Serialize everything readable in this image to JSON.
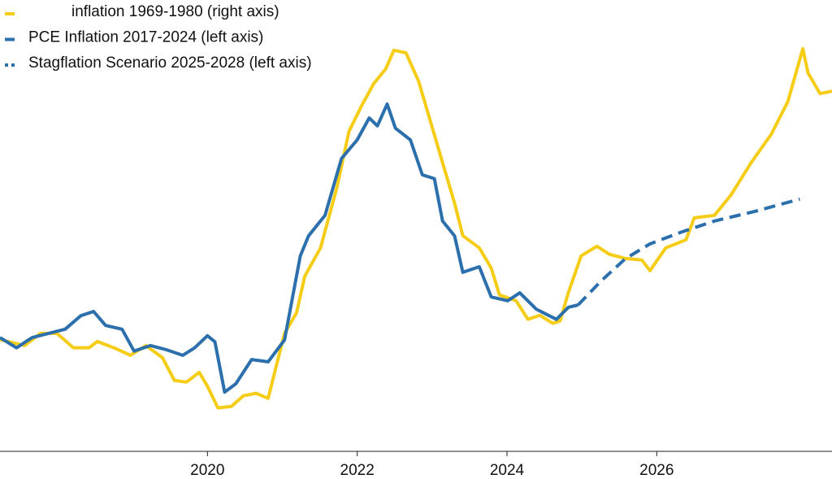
{
  "chart_data": {
    "type": "line",
    "xlim": [
      2017.23,
      2028.34
    ],
    "xticks": [
      2020,
      2022,
      2024,
      2026
    ],
    "ylim": [
      -0.47,
      9.21
    ],
    "y2lim": [
      1.7,
      16.16
    ],
    "series": [
      {
        "name": "inflation 1969-1980 (right axis)",
        "color": "#f5cc16",
        "axis": "y2",
        "dash": false,
        "x": [
          2017.23,
          2017.56,
          2017.77,
          2017.99,
          2018.21,
          2018.42,
          2018.53,
          2018.75,
          2018.97,
          2019.18,
          2019.4,
          2019.56,
          2019.72,
          2019.89,
          2020.0,
          2020.14,
          2020.32,
          2020.48,
          2020.65,
          2020.81,
          2021.03,
          2021.19,
          2021.3,
          2021.51,
          2021.73,
          2021.89,
          2022.06,
          2022.22,
          2022.38,
          2022.49,
          2022.65,
          2022.82,
          2022.98,
          2023.14,
          2023.3,
          2023.41,
          2023.63,
          2023.79,
          2023.9,
          2024.12,
          2024.28,
          2024.44,
          2024.61,
          2024.71,
          2024.82,
          2024.99,
          2025.2,
          2025.37,
          2025.58,
          2025.8,
          2025.91,
          2026.12,
          2026.39,
          2026.5,
          2026.77,
          2026.99,
          2027.26,
          2027.53,
          2027.75,
          2027.95,
          2028.02,
          2028.18,
          2028.34
        ],
        "values": [
          5.28,
          5.09,
          5.48,
          5.48,
          5.02,
          5.02,
          5.22,
          5.02,
          4.78,
          5.09,
          4.7,
          3.97,
          3.92,
          4.23,
          3.79,
          3.09,
          3.14,
          3.48,
          3.56,
          3.4,
          5.48,
          6.14,
          7.31,
          8.22,
          10.17,
          11.95,
          12.78,
          13.48,
          13.95,
          14.55,
          14.47,
          13.56,
          12.25,
          10.95,
          9.65,
          8.61,
          8.22,
          7.57,
          6.71,
          6.53,
          5.93,
          6.06,
          5.8,
          5.88,
          6.79,
          7.96,
          8.27,
          8.01,
          7.88,
          7.83,
          7.49,
          8.22,
          8.48,
          9.18,
          9.26,
          9.91,
          10.95,
          11.86,
          12.9,
          14.6,
          13.82,
          13.16,
          13.24
        ]
      },
      {
        "name": "PCE Inflation 2017-2024 (left axis)",
        "color": "#2b6fad",
        "axis": "y",
        "dash": false,
        "x": [
          2017.23,
          2017.45,
          2017.66,
          2017.88,
          2018.1,
          2018.31,
          2018.48,
          2018.64,
          2018.86,
          2019.02,
          2019.24,
          2019.45,
          2019.67,
          2019.83,
          2020.0,
          2020.1,
          2020.23,
          2020.38,
          2020.59,
          2020.81,
          2021.03,
          2021.24,
          2021.35,
          2021.57,
          2021.79,
          2022.0,
          2022.16,
          2022.27,
          2022.4,
          2022.51,
          2022.71,
          2022.87,
          2023.03,
          2023.14,
          2023.3,
          2023.41,
          2023.63,
          2023.79,
          2024.01,
          2024.17,
          2024.39,
          2024.66,
          2024.82,
          2024.95
        ],
        "values": [
          1.97,
          1.75,
          1.97,
          2.06,
          2.15,
          2.44,
          2.53,
          2.23,
          2.15,
          1.68,
          1.8,
          1.71,
          1.59,
          1.75,
          2.01,
          1.88,
          0.8,
          0.98,
          1.5,
          1.45,
          1.92,
          3.72,
          4.15,
          4.59,
          5.81,
          6.21,
          6.68,
          6.51,
          6.98,
          6.46,
          6.21,
          5.46,
          5.38,
          4.47,
          4.15,
          3.37,
          3.49,
          2.84,
          2.76,
          2.93,
          2.58,
          2.36,
          2.62,
          2.67
        ]
      },
      {
        "name": "Stagflation Scenario 2025-2028 (left axis)",
        "color": "#2b6fad",
        "axis": "y",
        "dash": true,
        "x": [
          2024.95,
          2025.26,
          2025.58,
          2025.91,
          2026.34,
          2026.77,
          2027.32,
          2027.91
        ],
        "values": [
          2.67,
          3.19,
          3.66,
          3.98,
          4.24,
          4.47,
          4.68,
          4.94
        ]
      }
    ]
  }
}
